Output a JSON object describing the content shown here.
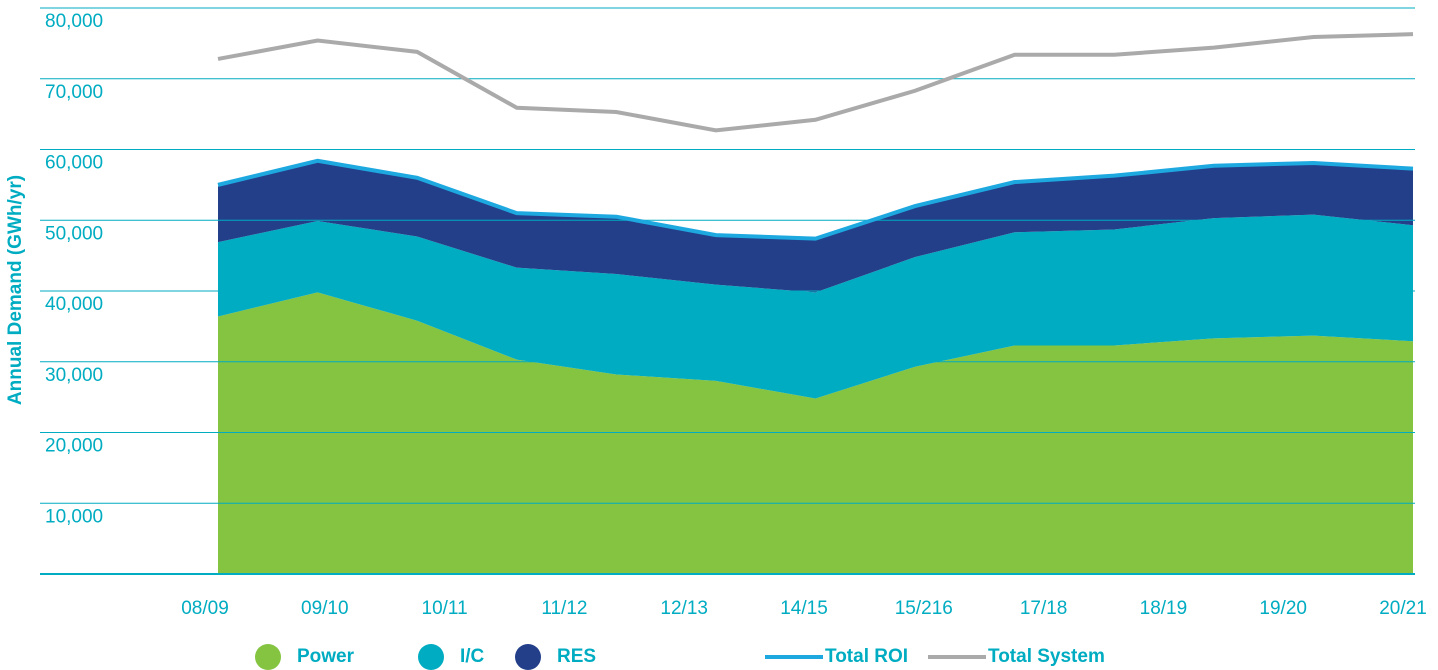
{
  "chart_data": {
    "type": "stacked-area-line",
    "y_label": "Annual Demand (GWh/yr)",
    "categories": [
      "08/09",
      "09/10",
      "10/11",
      "11/12",
      "12/13",
      "14/15",
      "15/216",
      "17/18",
      "18/19",
      "19/20",
      "20/21",
      null,
      null
    ],
    "ylim": [
      0,
      80000
    ],
    "yticks": [
      {
        "value": 10000,
        "label": "10,000"
      },
      {
        "value": 20000,
        "label": "20,000"
      },
      {
        "value": 30000,
        "label": "30,000"
      },
      {
        "value": 40000,
        "label": "40,000"
      },
      {
        "value": 50000,
        "label": "50,000"
      },
      {
        "value": 60000,
        "label": "60,000"
      },
      {
        "value": 70000,
        "label": "70,000"
      },
      {
        "value": 80000,
        "label": "80,000"
      }
    ],
    "grid": true,
    "series": [
      {
        "name": "Power",
        "type": "area",
        "color": "#84c441",
        "values": [
          36400,
          39800,
          35800,
          30300,
          28200,
          27300,
          24800,
          29300,
          32300,
          32300,
          33300,
          33700,
          32900
        ]
      },
      {
        "name": "I/C",
        "type": "area",
        "color": "#00acc1",
        "values": [
          10500,
          10100,
          11900,
          13000,
          14200,
          13600,
          15000,
          15500,
          16000,
          16400,
          17000,
          17100,
          16400
        ]
      },
      {
        "name": "RES",
        "type": "area",
        "color": "#233f8a",
        "values": [
          7900,
          8300,
          8100,
          7500,
          7900,
          6800,
          7400,
          7000,
          6900,
          7400,
          7200,
          7100,
          7800
        ]
      },
      {
        "name": "Total ROI",
        "type": "line",
        "color": "#1ea8e0",
        "values": [
          55000,
          58400,
          56000,
          51000,
          50500,
          47900,
          47400,
          52000,
          55400,
          56300,
          57700,
          58100,
          57300
        ]
      },
      {
        "name": "Total System",
        "type": "line",
        "color": "#aaaaaa",
        "values": [
          72800,
          75400,
          73800,
          65900,
          65300,
          62700,
          64200,
          68300,
          73400,
          73400,
          74400,
          75900,
          76300
        ]
      }
    ]
  }
}
